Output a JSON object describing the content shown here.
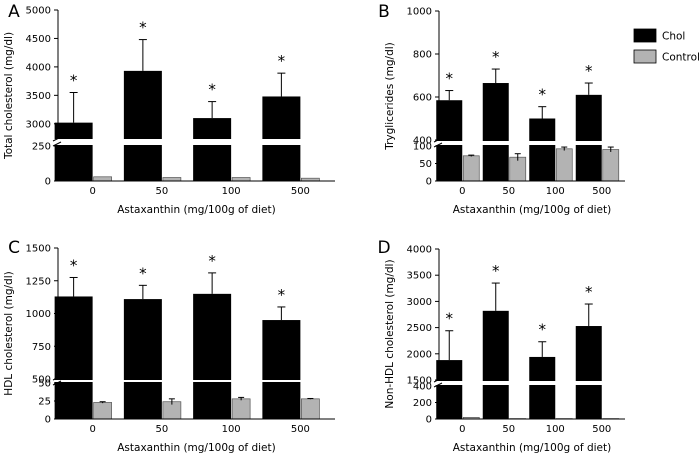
{
  "legend": {
    "items": [
      {
        "name": "Chol",
        "color": "#000000"
      },
      {
        "name": "Control",
        "color": "#b3b3b3"
      }
    ],
    "placement": "top-right of panel B"
  },
  "chart_data": [
    {
      "panel": "A",
      "type": "bar",
      "ylabel": "Total cholesterol (mg/dl)",
      "xlabel": "Astaxanthin (mg/100g of diet)",
      "categories": [
        "0",
        "50",
        "100",
        "500"
      ],
      "y_axis_break": true,
      "upper_range": [
        2750,
        5000
      ],
      "lower_range": [
        0,
        250
      ],
      "upper_ticks": [
        "3000",
        "3500",
        "4000",
        "4500",
        "5000"
      ],
      "lower_ticks": [
        "0",
        "250"
      ],
      "series": [
        {
          "name": "Chol",
          "values": [
            3020,
            3930,
            3100,
            3480
          ],
          "errors": [
            530,
            550,
            290,
            410
          ],
          "significance": [
            "*",
            "*",
            "*",
            "*"
          ]
        },
        {
          "name": "Control",
          "values": [
            30,
            25,
            25,
            20
          ],
          "errors": [
            0,
            0,
            0,
            0
          ]
        }
      ]
    },
    {
      "panel": "B",
      "type": "bar",
      "ylabel": "Tryglicerides (mg/dl)",
      "xlabel": "Astaxanthin (mg/100g of diet)",
      "categories": [
        "0",
        "50",
        "100",
        "500"
      ],
      "y_axis_break": true,
      "upper_range": [
        400,
        1000
      ],
      "lower_range": [
        0,
        100
      ],
      "upper_ticks": [
        "400",
        "600",
        "800",
        "1000"
      ],
      "lower_ticks": [
        "0",
        "50",
        "100"
      ],
      "series": [
        {
          "name": "Chol",
          "values": [
            585,
            665,
            500,
            610
          ],
          "errors": [
            45,
            65,
            55,
            55
          ],
          "significance": [
            "*",
            "*",
            "*",
            "*"
          ]
        },
        {
          "name": "Control",
          "values": [
            72,
            68,
            92,
            90
          ],
          "errors": [
            2,
            10,
            5,
            7
          ]
        }
      ]
    },
    {
      "panel": "C",
      "type": "bar",
      "ylabel": "HDL cholesterol (mg/dl)",
      "xlabel": "Astaxanthin (mg/100g of diet)",
      "categories": [
        "0",
        "50",
        "100",
        "500"
      ],
      "y_axis_break": true,
      "upper_range": [
        500,
        1500
      ],
      "lower_range": [
        0,
        50
      ],
      "upper_ticks": [
        "500",
        "750",
        "1000",
        "1250",
        "1500"
      ],
      "lower_ticks": [
        "0",
        "25",
        "50"
      ],
      "series": [
        {
          "name": "Chol",
          "values": [
            1130,
            1110,
            1150,
            950
          ],
          "errors": [
            145,
            105,
            160,
            100
          ],
          "significance": [
            "*",
            "*",
            "*",
            "*"
          ]
        },
        {
          "name": "Control",
          "values": [
            23,
            24,
            28,
            28
          ],
          "errors": [
            1,
            4,
            2,
            0.5
          ]
        }
      ]
    },
    {
      "panel": "D",
      "type": "bar",
      "ylabel": "Non-HDL cholesterol (mg/dl)",
      "xlabel": "Astaxanthin (mg/100g of diet)",
      "categories": [
        "0",
        "50",
        "100",
        "500"
      ],
      "y_axis_break": true,
      "upper_range": [
        1500,
        4000
      ],
      "lower_range": [
        0,
        400
      ],
      "upper_ticks": [
        "1500",
        "2000",
        "2500",
        "3000",
        "3500",
        "4000"
      ],
      "lower_ticks": [
        "0",
        "200",
        "400"
      ],
      "series": [
        {
          "name": "Chol",
          "values": [
            1880,
            2820,
            1940,
            2530
          ],
          "errors": [
            560,
            530,
            290,
            420
          ],
          "significance": [
            "*",
            "*",
            "*",
            "*"
          ]
        },
        {
          "name": "Control",
          "values": [
            20,
            5,
            5,
            5
          ],
          "errors": [
            0,
            0,
            0,
            0
          ]
        }
      ]
    }
  ]
}
